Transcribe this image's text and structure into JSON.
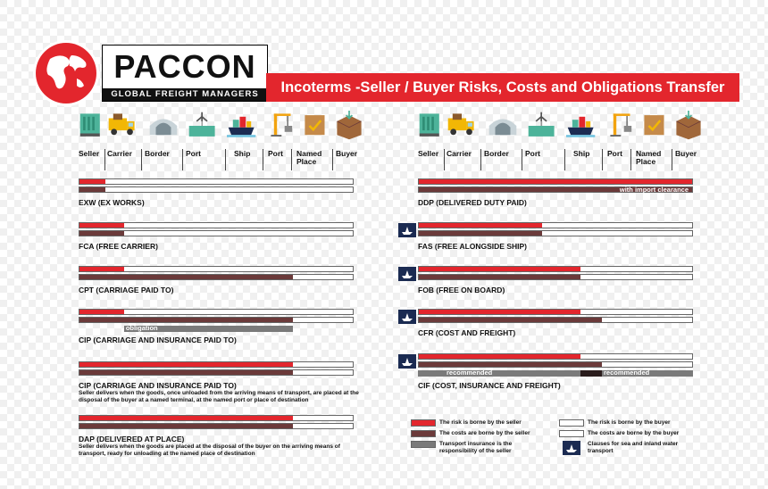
{
  "brand": {
    "name": "PACCON",
    "subtitle": "GLOBAL FREIGHT MANAGERS"
  },
  "title": "Incoterms -Seller / Buyer Risks, Costs and Obligations Transfer",
  "stages": [
    "Seller",
    "Carrier",
    "Border",
    "Port",
    "Ship",
    "Port",
    "Named Place",
    "Buyer"
  ],
  "colors": {
    "risk_seller": "#e3262d",
    "cost_seller": "#6b3a3a",
    "insurance": "#7a7a7a",
    "sea": "#1b2b52"
  },
  "left_terms": [
    {
      "name": "EXW (EX WORKS)",
      "risk": 0.095,
      "cost": 0.095,
      "desc": ""
    },
    {
      "name": "FCA (FREE CARRIER)",
      "risk": 0.165,
      "cost": 0.165,
      "desc": ""
    },
    {
      "name": "CPT (CARRIAGE PAID TO)",
      "risk": 0.165,
      "cost": 0.78,
      "desc": ""
    },
    {
      "name": "CIP (CARRIAGE AND INSURANCE PAID TO)",
      "risk": 0.165,
      "cost": 0.78,
      "insurance_label": "obligation",
      "desc": ""
    },
    {
      "name": "CIP (CARRIAGE AND INSURANCE PAID TO)",
      "risk": 0.78,
      "cost": 0.78,
      "desc": "Seller delivers when the goods, once unloaded from the arriving means of transport, are placed at the disposal of the buyer at a named terminal, at the named port or place of destination"
    },
    {
      "name": "DAP (DELIVERED AT PLACE)",
      "risk": 0.78,
      "cost": 0.78,
      "desc": "Seller delivers when the goods are placed at the disposal of the buyer on the arriving means of transport, ready for unloading at the named place of destination"
    }
  ],
  "right_terms": [
    {
      "name": "DDP (DELIVERED DUTY PAID)",
      "risk": 1.0,
      "cost": 1.0,
      "cost_label": "with import clearance"
    },
    {
      "name": "FAS (FREE ALONGSIDE SHIP)",
      "risk": 0.45,
      "cost": 0.45
    },
    {
      "name": "FOB (FREE ON BOARD)",
      "risk": 0.59,
      "cost": 0.59
    },
    {
      "name": "CFR (COST AND FREIGHT)",
      "risk": 0.59,
      "cost": 0.67
    },
    {
      "name": "CIF (COST, INSURANCE AND FREIGHT)",
      "risk": 0.59,
      "cost": 0.67,
      "insurance_labels": [
        "recommended",
        "recommended"
      ]
    }
  ],
  "legend": {
    "risk_seller": "The risk is borne by the seller",
    "cost_seller": "The costs are borne by the seller",
    "insurance": "Transport insurance is the responsibility of the seller",
    "risk_buyer": "The risk is borne by the buyer",
    "cost_buyer": "The costs are borne by the buyer",
    "sea": "Clauses for sea and inland water transport"
  }
}
